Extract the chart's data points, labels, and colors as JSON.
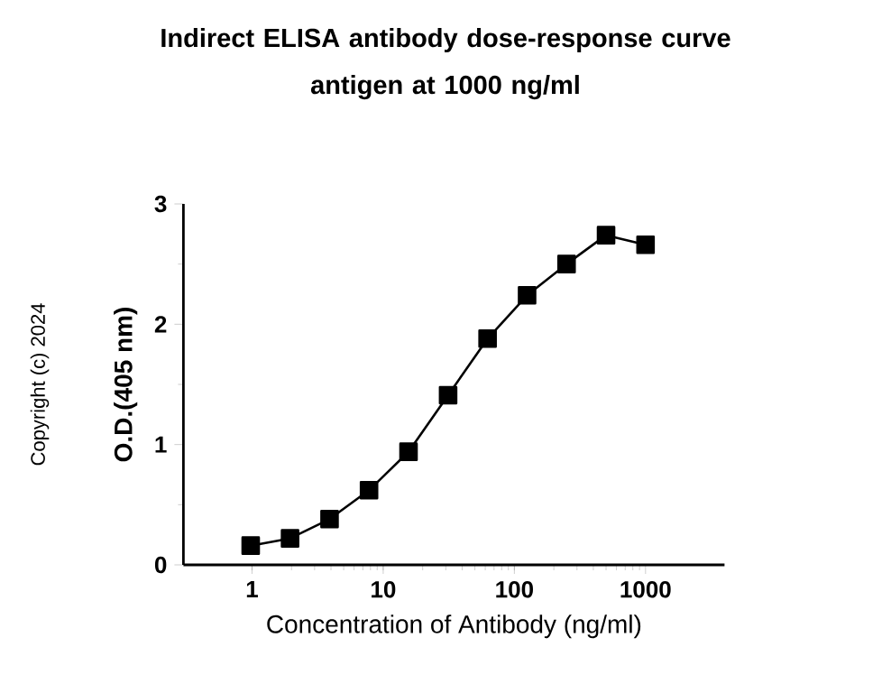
{
  "chart_data": {
    "type": "line",
    "title": "Indirect ELISA antibody dose-response curve\nantigen at 1000 ng/ml",
    "xlabel": "Concentration of Antibody (ng/ml)",
    "ylabel": "O.D.(405 nm)",
    "annotations": [
      "Copyright (c) 2024"
    ],
    "x": [
      0.977,
      1.95,
      3.9,
      7.8,
      15.6,
      31.25,
      62.5,
      125,
      250,
      500,
      1000
    ],
    "series": [
      {
        "color": "#000000",
        "values": [
          0.16,
          0.22,
          0.38,
          0.62,
          0.94,
          1.41,
          1.88,
          2.24,
          2.5,
          2.74,
          2.66
        ]
      }
    ],
    "log": "x",
    "xlim": [
      0.3,
      4000
    ],
    "xticks": [
      1,
      10,
      100,
      1000
    ],
    "ylim": [
      0,
      3
    ],
    "yticks": [
      0,
      1,
      2,
      3
    ],
    "marker": "square",
    "line_style": "solid",
    "grid": false
  }
}
